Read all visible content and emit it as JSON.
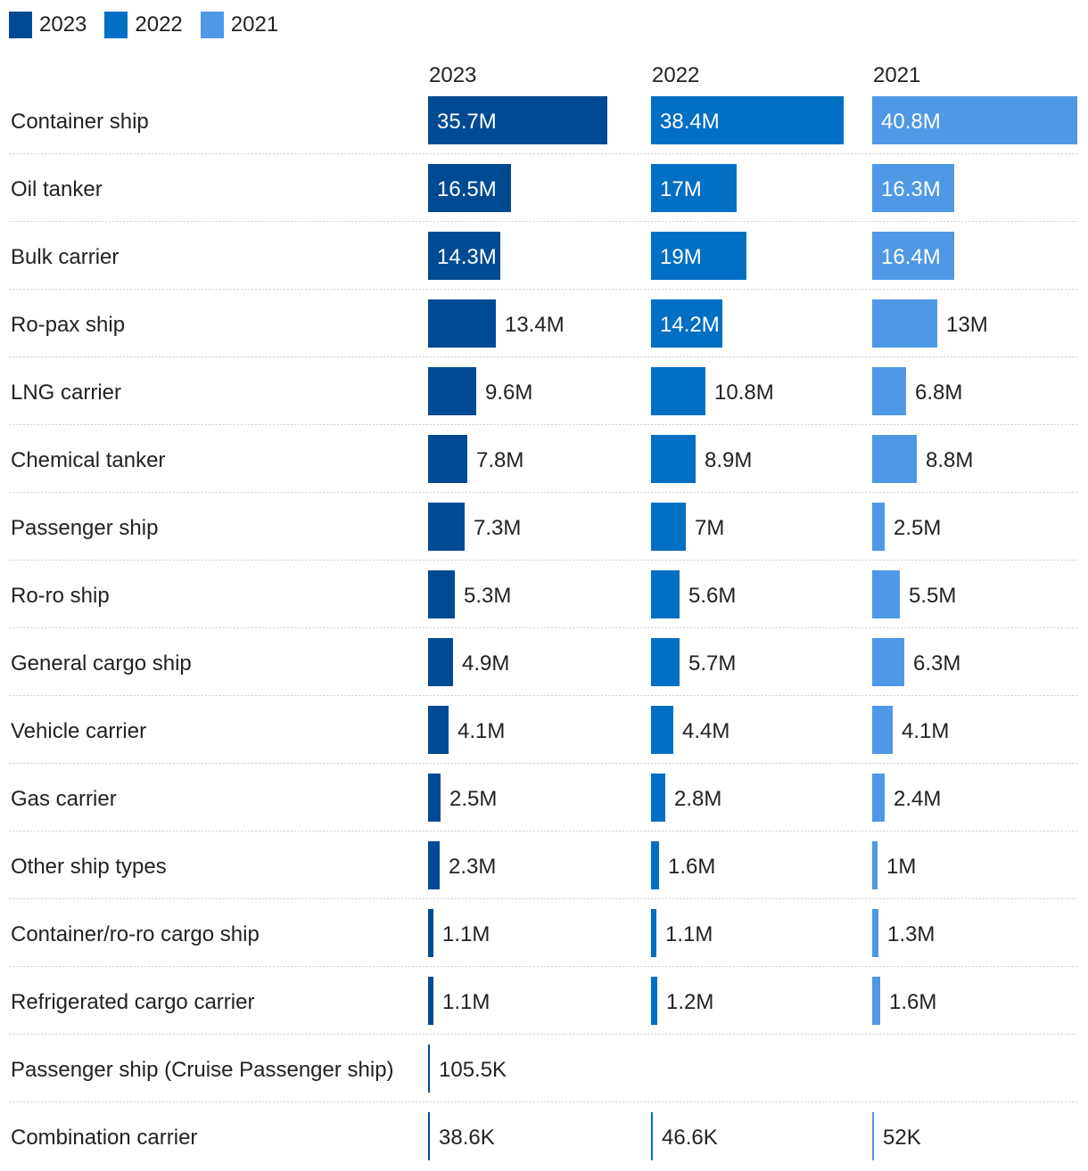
{
  "chart_data": {
    "type": "bar",
    "orientation": "horizontal",
    "layout": "small-multiples",
    "legend_position": "top-left",
    "series": [
      {
        "name": "2023",
        "color": "#004a93",
        "values": [
          35.7,
          16.5,
          14.3,
          13.4,
          9.6,
          7.8,
          7.3,
          5.3,
          4.9,
          4.1,
          2.5,
          2.3,
          1.1,
          1.1,
          0.1055,
          0.0386
        ],
        "labels": [
          "35.7M",
          "16.5M",
          "14.3M",
          "13.4M",
          "9.6M",
          "7.8M",
          "7.3M",
          "5.3M",
          "4.9M",
          "4.1M",
          "2.5M",
          "2.3M",
          "1.1M",
          "1.1M",
          "105.5K",
          "38.6K"
        ]
      },
      {
        "name": "2022",
        "color": "#006fc4",
        "values": [
          38.4,
          17,
          19,
          14.2,
          10.8,
          8.9,
          7,
          5.6,
          5.7,
          4.4,
          2.8,
          1.6,
          1.1,
          1.2,
          null,
          0.0466
        ],
        "labels": [
          "38.4M",
          "17M",
          "19M",
          "14.2M",
          "10.8M",
          "8.9M",
          "7M",
          "5.6M",
          "5.7M",
          "4.4M",
          "2.8M",
          "1.6M",
          "1.1M",
          "1.2M",
          null,
          "46.6K"
        ]
      },
      {
        "name": "2021",
        "color": "#4f98e6",
        "values": [
          40.8,
          16.3,
          16.4,
          13,
          6.8,
          8.8,
          2.5,
          5.5,
          6.3,
          4.1,
          2.4,
          1,
          1.3,
          1.6,
          null,
          0.052
        ],
        "labels": [
          "40.8M",
          "16.3M",
          "16.4M",
          "13M",
          "6.8M",
          "8.8M",
          "2.5M",
          "5.5M",
          "6.3M",
          "4.1M",
          "2.4M",
          "1M",
          "1.3M",
          "1.6M",
          null,
          "52K"
        ]
      }
    ],
    "categories": [
      "Container ship",
      "Oil tanker",
      "Bulk carrier",
      "Ro-pax ship",
      "LNG carrier",
      "Chemical tanker",
      "Passenger ship",
      "Ro-ro ship",
      "General cargo ship",
      "Vehicle carrier",
      "Gas carrier",
      "Other ship types",
      "Container/ro-ro cargo ship",
      "Refrigerated cargo carrier",
      "Passenger ship (Cruise Passenger ship)",
      "Combination carrier"
    ],
    "unit": "M",
    "xlim": [
      0,
      40.8
    ]
  }
}
